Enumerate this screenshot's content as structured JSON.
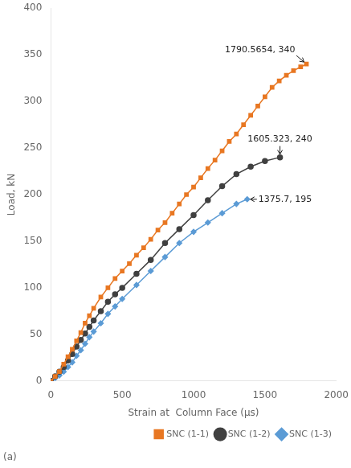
{
  "chart_data": {
    "type": "line",
    "xlabel": "Strain at  Column Face (μs)",
    "ylabel": "Load, kN",
    "subtitle": "(a)",
    "xlim": [
      0,
      2000
    ],
    "ylim": [
      0,
      400
    ],
    "xticks": [
      0,
      500,
      1000,
      1500,
      2000
    ],
    "yticks": [
      0,
      50,
      100,
      150,
      200,
      250,
      300,
      350,
      400
    ],
    "grid": false,
    "legend": "lower right",
    "series": [
      {
        "name": "SNC (1-1)",
        "color": "#E87722",
        "marker": "square",
        "x": [
          0,
          30,
          60,
          90,
          120,
          150,
          180,
          210,
          240,
          270,
          300,
          350,
          400,
          450,
          500,
          550,
          600,
          650,
          700,
          750,
          800,
          850,
          900,
          950,
          1000,
          1050,
          1100,
          1150,
          1200,
          1250,
          1300,
          1350,
          1400,
          1450,
          1500,
          1550,
          1600,
          1650,
          1700,
          1750,
          1790.5654
        ],
        "values": [
          0,
          5,
          10,
          18,
          26,
          34,
          43,
          52,
          62,
          70,
          78,
          90,
          100,
          110,
          118,
          126,
          135,
          143,
          152,
          162,
          170,
          180,
          190,
          200,
          208,
          218,
          228,
          237,
          247,
          257,
          265,
          275,
          285,
          295,
          305,
          315,
          322,
          328,
          333,
          337,
          340
        ]
      },
      {
        "name": "SNC (1-2)",
        "color": "#404040",
        "marker": "circle",
        "x": [
          0,
          30,
          60,
          90,
          120,
          150,
          180,
          210,
          240,
          270,
          300,
          350,
          400,
          450,
          500,
          600,
          700,
          800,
          900,
          1000,
          1100,
          1200,
          1300,
          1400,
          1500,
          1605.323
        ],
        "values": [
          0,
          5,
          10,
          15,
          22,
          29,
          37,
          44,
          51,
          58,
          65,
          75,
          85,
          93,
          100,
          115,
          130,
          148,
          163,
          178,
          194,
          209,
          222,
          230,
          236,
          240
        ]
      },
      {
        "name": "SNC (1-3)",
        "color": "#5B9BD5",
        "marker": "diamond",
        "x": [
          0,
          30,
          60,
          90,
          120,
          150,
          180,
          210,
          240,
          270,
          300,
          350,
          400,
          450,
          500,
          600,
          700,
          800,
          900,
          1000,
          1100,
          1200,
          1300,
          1375.7
        ],
        "values": [
          0,
          3,
          6,
          10,
          15,
          20,
          27,
          33,
          40,
          47,
          53,
          62,
          72,
          80,
          88,
          103,
          118,
          133,
          148,
          160,
          170,
          180,
          190,
          195
        ]
      }
    ],
    "annotations": [
      {
        "text": "1790.5654, 340",
        "x": 1790.5654,
        "y": 340
      },
      {
        "text": "1605.323, 240",
        "x": 1605.323,
        "y": 240
      },
      {
        "text": "1375.7, 195",
        "x": 1375.7,
        "y": 195
      }
    ]
  }
}
